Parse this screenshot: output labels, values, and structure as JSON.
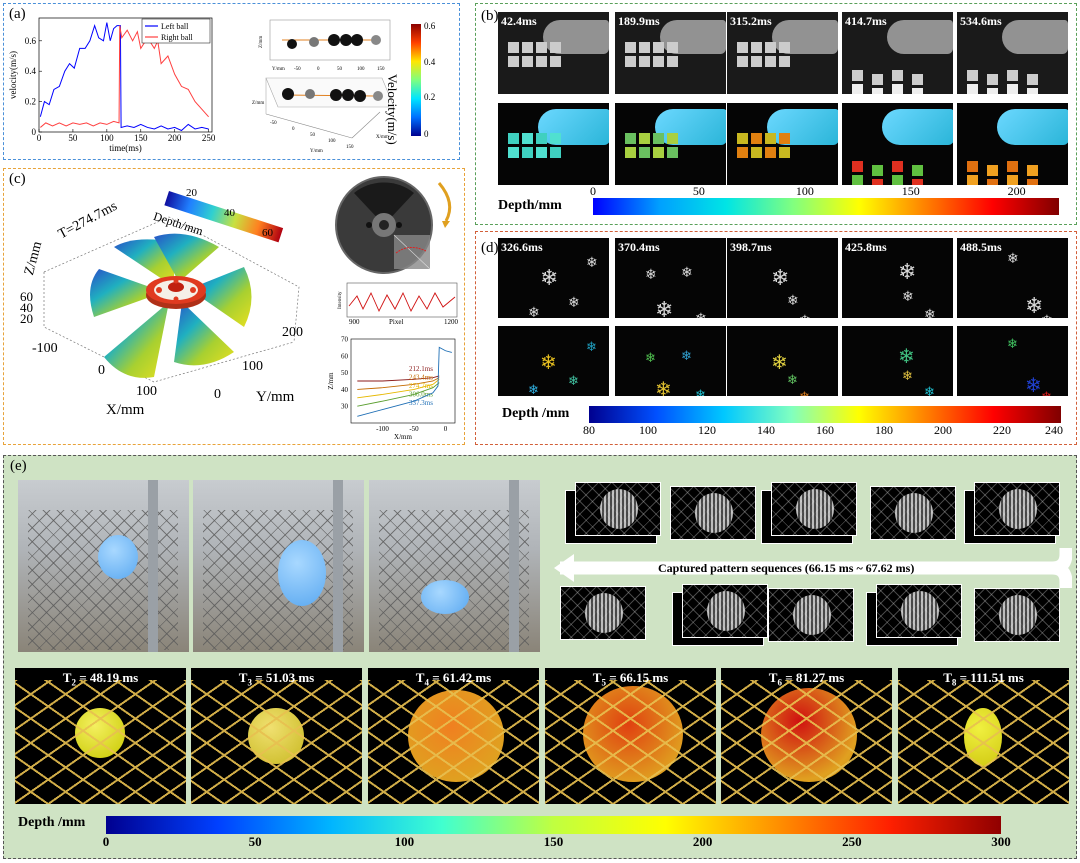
{
  "panel_labels": {
    "a": "(a)",
    "b": "(b)",
    "c": "(c)",
    "d": "(d)",
    "e": "(e)"
  },
  "panel_a": {
    "chart_data": {
      "type": "line",
      "xlabel": "time(ms)",
      "ylabel": "velocity(m/s)",
      "xlim": [
        0,
        255
      ],
      "ylim": [
        0,
        0.75
      ],
      "xticks": [
        0,
        50,
        100,
        150,
        200,
        250
      ],
      "yticks": [
        0,
        0.2,
        0.4,
        0.6
      ],
      "series": [
        {
          "name": "Left ball",
          "color": "#0000ff",
          "x": [
            2,
            8,
            15,
            22,
            30,
            38,
            45,
            52,
            60,
            68,
            75,
            82,
            88,
            95,
            100,
            105,
            110,
            115,
            120,
            121,
            130,
            140,
            150,
            160,
            170,
            180,
            190,
            200,
            210,
            220,
            230,
            240,
            250
          ],
          "y": [
            0.1,
            0.2,
            0.18,
            0.28,
            0.3,
            0.4,
            0.45,
            0.42,
            0.55,
            0.55,
            0.6,
            0.7,
            0.62,
            0.6,
            0.72,
            0.6,
            0.68,
            0.7,
            0.7,
            0.03,
            0.04,
            0.03,
            0.05,
            0.03,
            0.02,
            0.04,
            0.02,
            0.03,
            0.01,
            0.05,
            0.02,
            0.03,
            0.02
          ]
        },
        {
          "name": "Right ball",
          "color": "#ff4040",
          "x": [
            2,
            10,
            20,
            30,
            40,
            50,
            60,
            70,
            80,
            90,
            100,
            110,
            118,
            119,
            122,
            130,
            138,
            145,
            150,
            160,
            170,
            175,
            180,
            190,
            200,
            210,
            220,
            230,
            240,
            250
          ],
          "y": [
            0.03,
            0.06,
            0.04,
            0.06,
            0.04,
            0.06,
            0.05,
            0.06,
            0.04,
            0.06,
            0.05,
            0.07,
            0.06,
            0.7,
            0.62,
            0.67,
            0.6,
            0.66,
            0.55,
            0.62,
            0.55,
            0.6,
            0.45,
            0.5,
            0.38,
            0.3,
            0.28,
            0.2,
            0.15,
            0.1
          ]
        }
      ]
    },
    "cbar": {
      "label": "Velocity(m/s)",
      "ticks": [
        "0",
        "0.2",
        "0.4",
        "0.6"
      ]
    },
    "trajectory": {
      "x_axis": "X/mm",
      "y_axis": "Y/mm",
      "z_axis": "Z/mm",
      "xticks": [
        "-50",
        "0",
        "50",
        "100",
        "150"
      ],
      "yticks": [
        "-50",
        "0",
        "50",
        "100",
        "150"
      ],
      "x3d": [
        "0",
        "50",
        "100",
        "150"
      ],
      "z3d": [
        "5",
        "0",
        "-5"
      ]
    }
  },
  "panel_b": {
    "times": [
      "42.4ms",
      "189.9ms",
      "315.2ms",
      "414.7ms",
      "534.6ms"
    ],
    "cbar": {
      "label": "Depth/mm",
      "ticks": [
        "0",
        "50",
        "100",
        "150",
        "200"
      ],
      "range": [
        0,
        220
      ]
    }
  },
  "panel_c": {
    "time_label": "T=274.7ms",
    "depth_label": "Depth/mm",
    "depth_ticks": [
      "20",
      "40",
      "60"
    ],
    "axes": {
      "z": "Z/mm",
      "x": "X/mm",
      "y": "Y/mm",
      "zticks": [
        "60",
        "40",
        "20"
      ],
      "xticks": [
        "-100",
        "0",
        "100",
        "200"
      ],
      "yticks": [
        "0",
        "100",
        "200"
      ]
    },
    "intensity": {
      "ylabel": "Intensity",
      "xlabel": "Pixel",
      "xticks": [
        "900",
        "1200"
      ]
    },
    "profile": {
      "chart_data": {
        "type": "line",
        "xlabel": "X/mm",
        "ylabel": "Z/mm",
        "xlim": [
          -150,
          15
        ],
        "ylim": [
          20,
          70
        ],
        "xticks": [
          -100,
          -50,
          0
        ],
        "yticks": [
          30,
          40,
          50,
          60,
          70
        ],
        "series": [
          {
            "name": "212.1ms",
            "color": "#8b1a1a",
            "x": [
              -140,
              -100,
              -50,
              -20,
              -10
            ],
            "y": [
              45,
              45,
              46,
              47,
              48
            ]
          },
          {
            "name": "243.4ms",
            "color": "#c46a00",
            "x": [
              -140,
              -100,
              -50,
              -20,
              -10
            ],
            "y": [
              40,
              41,
              43,
              45,
              47
            ]
          },
          {
            "name": "274.7ms",
            "color": "#e6b800",
            "x": [
              -140,
              -100,
              -50,
              -20,
              -10
            ],
            "y": [
              35,
              37,
              40,
              43,
              46
            ]
          },
          {
            "name": "306.0ms",
            "color": "#5a9e2f",
            "x": [
              -140,
              -100,
              -50,
              -20,
              -10
            ],
            "y": [
              30,
              33,
              37,
              41,
              44
            ]
          },
          {
            "name": "337.3ms",
            "color": "#1f6fb5",
            "x": [
              -140,
              -100,
              -50,
              -20,
              -12,
              -10,
              0,
              10
            ],
            "y": [
              24,
              28,
              33,
              38,
              42,
              65,
              63,
              62
            ]
          }
        ]
      }
    }
  },
  "panel_d": {
    "times": [
      "326.6ms",
      "370.4ms",
      "398.7ms",
      "425.8ms",
      "488.5ms"
    ],
    "cbar": {
      "label": "Depth /mm",
      "ticks": [
        "80",
        "100",
        "120",
        "140",
        "160",
        "180",
        "200",
        "220",
        "240"
      ],
      "range": [
        80,
        240
      ]
    }
  },
  "panel_e": {
    "sequence_caption": "Captured pattern sequences (66.15 ms ~ 67.62 ms)",
    "frames": [
      {
        "label": "T",
        "sub": "2",
        "time": " = 48.19 ms"
      },
      {
        "label": "T",
        "sub": "3",
        "time": " = 51.03 ms"
      },
      {
        "label": "T",
        "sub": "4",
        "time": " = 61.42 ms"
      },
      {
        "label": "T",
        "sub": "5",
        "time": " = 66.15 ms"
      },
      {
        "label": "T",
        "sub": "6",
        "time": " = 81.27 ms"
      },
      {
        "label": "T",
        "sub": "8",
        "time": " = 111.51 ms"
      }
    ],
    "cbar": {
      "label": "Depth /mm",
      "ticks": [
        "0",
        "50",
        "100",
        "150",
        "200",
        "250",
        "300"
      ],
      "range": [
        0,
        300
      ]
    }
  },
  "colors": {
    "border_blue": "#4a90d9",
    "border_green": "#5aa05a",
    "border_orange": "#e8a33a",
    "border_red": "#d2603a",
    "e_background": "#cfe3c4"
  }
}
